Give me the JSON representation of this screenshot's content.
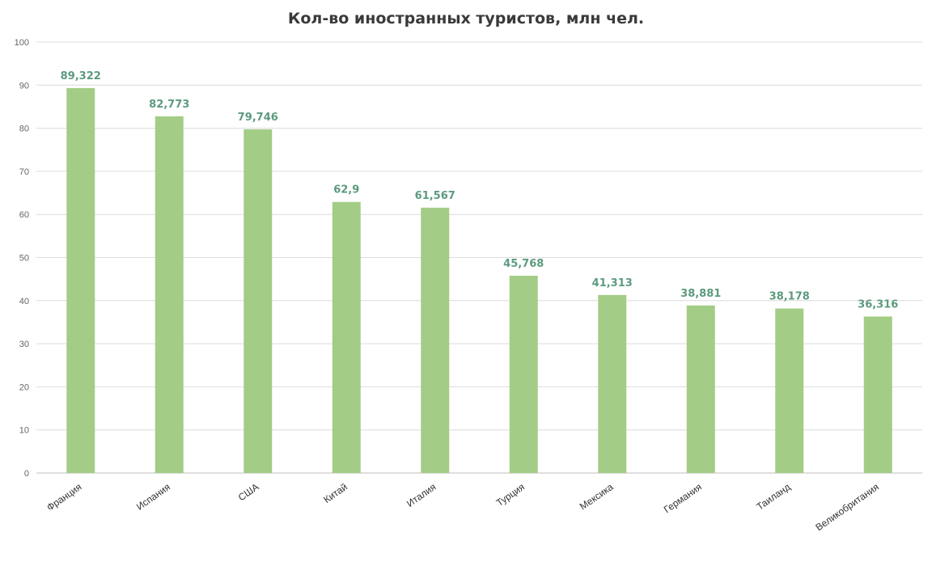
{
  "chart_data": {
    "type": "bar",
    "title": "Кол-во иностранных туристов, млн чел.",
    "xlabel": "",
    "ylabel": "",
    "categories": [
      "Франция",
      "Испания",
      "США",
      "Китай",
      "Италия",
      "Турция",
      "Мексика",
      "Германия",
      "Таиланд",
      "Великобритания"
    ],
    "values": [
      89.322,
      82.773,
      79.746,
      62.9,
      61.567,
      45.768,
      41.313,
      38.881,
      38.178,
      36.316
    ],
    "data_labels": [
      "89,322",
      "82,773",
      "79,746",
      "62,9",
      "61,567",
      "45,768",
      "41,313",
      "38,881",
      "38,178",
      "36,316"
    ],
    "ylim": [
      0,
      100
    ],
    "yticks": [
      0,
      10,
      20,
      30,
      40,
      50,
      60,
      70,
      80,
      90,
      100
    ],
    "grid": true,
    "legend": "none",
    "colors": {
      "bar": "#a3cd86",
      "data_label": "#5c9a7e",
      "grid": "#dcdcdc"
    }
  }
}
